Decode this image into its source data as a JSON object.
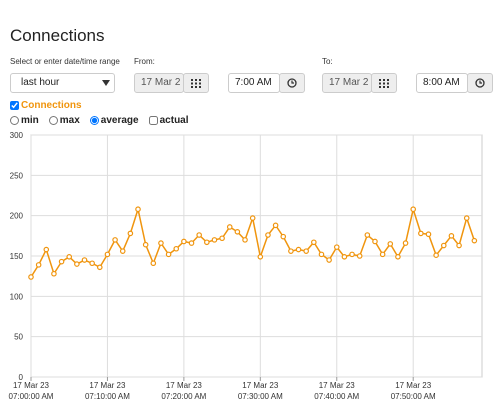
{
  "header": {
    "title": "Connections"
  },
  "controls": {
    "range_label": "Select or enter date/time range",
    "range_value": "last hour",
    "from_label": "From:",
    "from_date": "17 Mar 2",
    "from_time": "7:00 AM",
    "to_label": "To:",
    "to_date": "17 Mar 2",
    "to_time": "8:00 AM"
  },
  "options": {
    "modes": [
      "min",
      "max",
      "average"
    ],
    "selected_mode": 2,
    "actual": "actual"
  },
  "chart_data": {
    "type": "line",
    "x": [
      "17 Mar 23 07:00:00 AM",
      "17 Mar 23 07:01:00 AM",
      "17 Mar 23 07:02:00 AM",
      "17 Mar 23 07:03:00 AM",
      "17 Mar 23 07:04:00 AM",
      "17 Mar 23 07:05:00 AM",
      "17 Mar 23 07:06:00 AM",
      "17 Mar 23 07:07:00 AM",
      "17 Mar 23 07:08:00 AM",
      "17 Mar 23 07:09:00 AM",
      "17 Mar 23 07:10:00 AM",
      "17 Mar 23 07:11:00 AM",
      "17 Mar 23 07:12:00 AM",
      "17 Mar 23 07:13:00 AM",
      "17 Mar 23 07:14:00 AM",
      "17 Mar 23 07:15:00 AM",
      "17 Mar 23 07:16:00 AM",
      "17 Mar 23 07:17:00 AM",
      "17 Mar 23 07:18:00 AM",
      "17 Mar 23 07:19:00 AM",
      "17 Mar 23 07:20:00 AM",
      "17 Mar 23 07:21:00 AM",
      "17 Mar 23 07:22:00 AM",
      "17 Mar 23 07:23:00 AM",
      "17 Mar 23 07:24:00 AM",
      "17 Mar 23 07:25:00 AM",
      "17 Mar 23 07:26:00 AM",
      "17 Mar 23 07:27:00 AM",
      "17 Mar 23 07:28:00 AM",
      "17 Mar 23 07:29:00 AM",
      "17 Mar 23 07:30:00 AM",
      "17 Mar 23 07:31:00 AM",
      "17 Mar 23 07:32:00 AM",
      "17 Mar 23 07:33:00 AM",
      "17 Mar 23 07:34:00 AM",
      "17 Mar 23 07:35:00 AM",
      "17 Mar 23 07:36:00 AM",
      "17 Mar 23 07:37:00 AM",
      "17 Mar 23 07:38:00 AM",
      "17 Mar 23 07:39:00 AM",
      "17 Mar 23 07:40:00 AM",
      "17 Mar 23 07:41:00 AM",
      "17 Mar 23 07:42:00 AM",
      "17 Mar 23 07:43:00 AM",
      "17 Mar 23 07:44:00 AM",
      "17 Mar 23 07:45:00 AM",
      "17 Mar 23 07:46:00 AM",
      "17 Mar 23 07:47:00 AM",
      "17 Mar 23 07:48:00 AM",
      "17 Mar 23 07:49:00 AM",
      "17 Mar 23 07:50:00 AM",
      "17 Mar 23 07:51:00 AM",
      "17 Mar 23 07:52:00 AM",
      "17 Mar 23 07:53:00 AM",
      "17 Mar 23 07:54:00 AM",
      "17 Mar 23 07:55:00 AM",
      "17 Mar 23 07:56:00 AM",
      "17 Mar 23 07:57:00 AM",
      "17 Mar 23 07:58:00 AM"
    ],
    "series": [
      {
        "name": "Connections",
        "color": "#f0950e",
        "values": [
          124,
          139,
          158,
          128,
          143,
          149,
          140,
          145,
          141,
          136,
          152,
          170,
          156,
          178,
          208,
          164,
          141,
          166,
          152,
          159,
          168,
          166,
          176,
          167,
          170,
          172,
          186,
          180,
          170,
          197,
          149,
          176,
          188,
          174,
          156,
          158,
          156,
          167,
          152,
          145,
          161,
          149,
          152,
          150,
          176,
          168,
          152,
          165,
          149,
          166,
          208,
          178,
          177,
          151,
          163,
          175,
          163,
          197,
          169
        ]
      }
    ],
    "xlim": [
      "17 Mar 23 07:00:00 AM",
      "17 Mar 23 07:59:00 AM"
    ],
    "xticks": [
      "17 Mar 23 07:00:00 AM",
      "17 Mar 23 07:10:00 AM",
      "17 Mar 23 07:20:00 AM",
      "17 Mar 23 07:30:00 AM",
      "17 Mar 23 07:40:00 AM",
      "17 Mar 23 07:50:00 AM"
    ],
    "ylim": [
      0,
      300
    ],
    "yticks": [
      0,
      50,
      100,
      150,
      200,
      250,
      300
    ],
    "grid": true
  }
}
